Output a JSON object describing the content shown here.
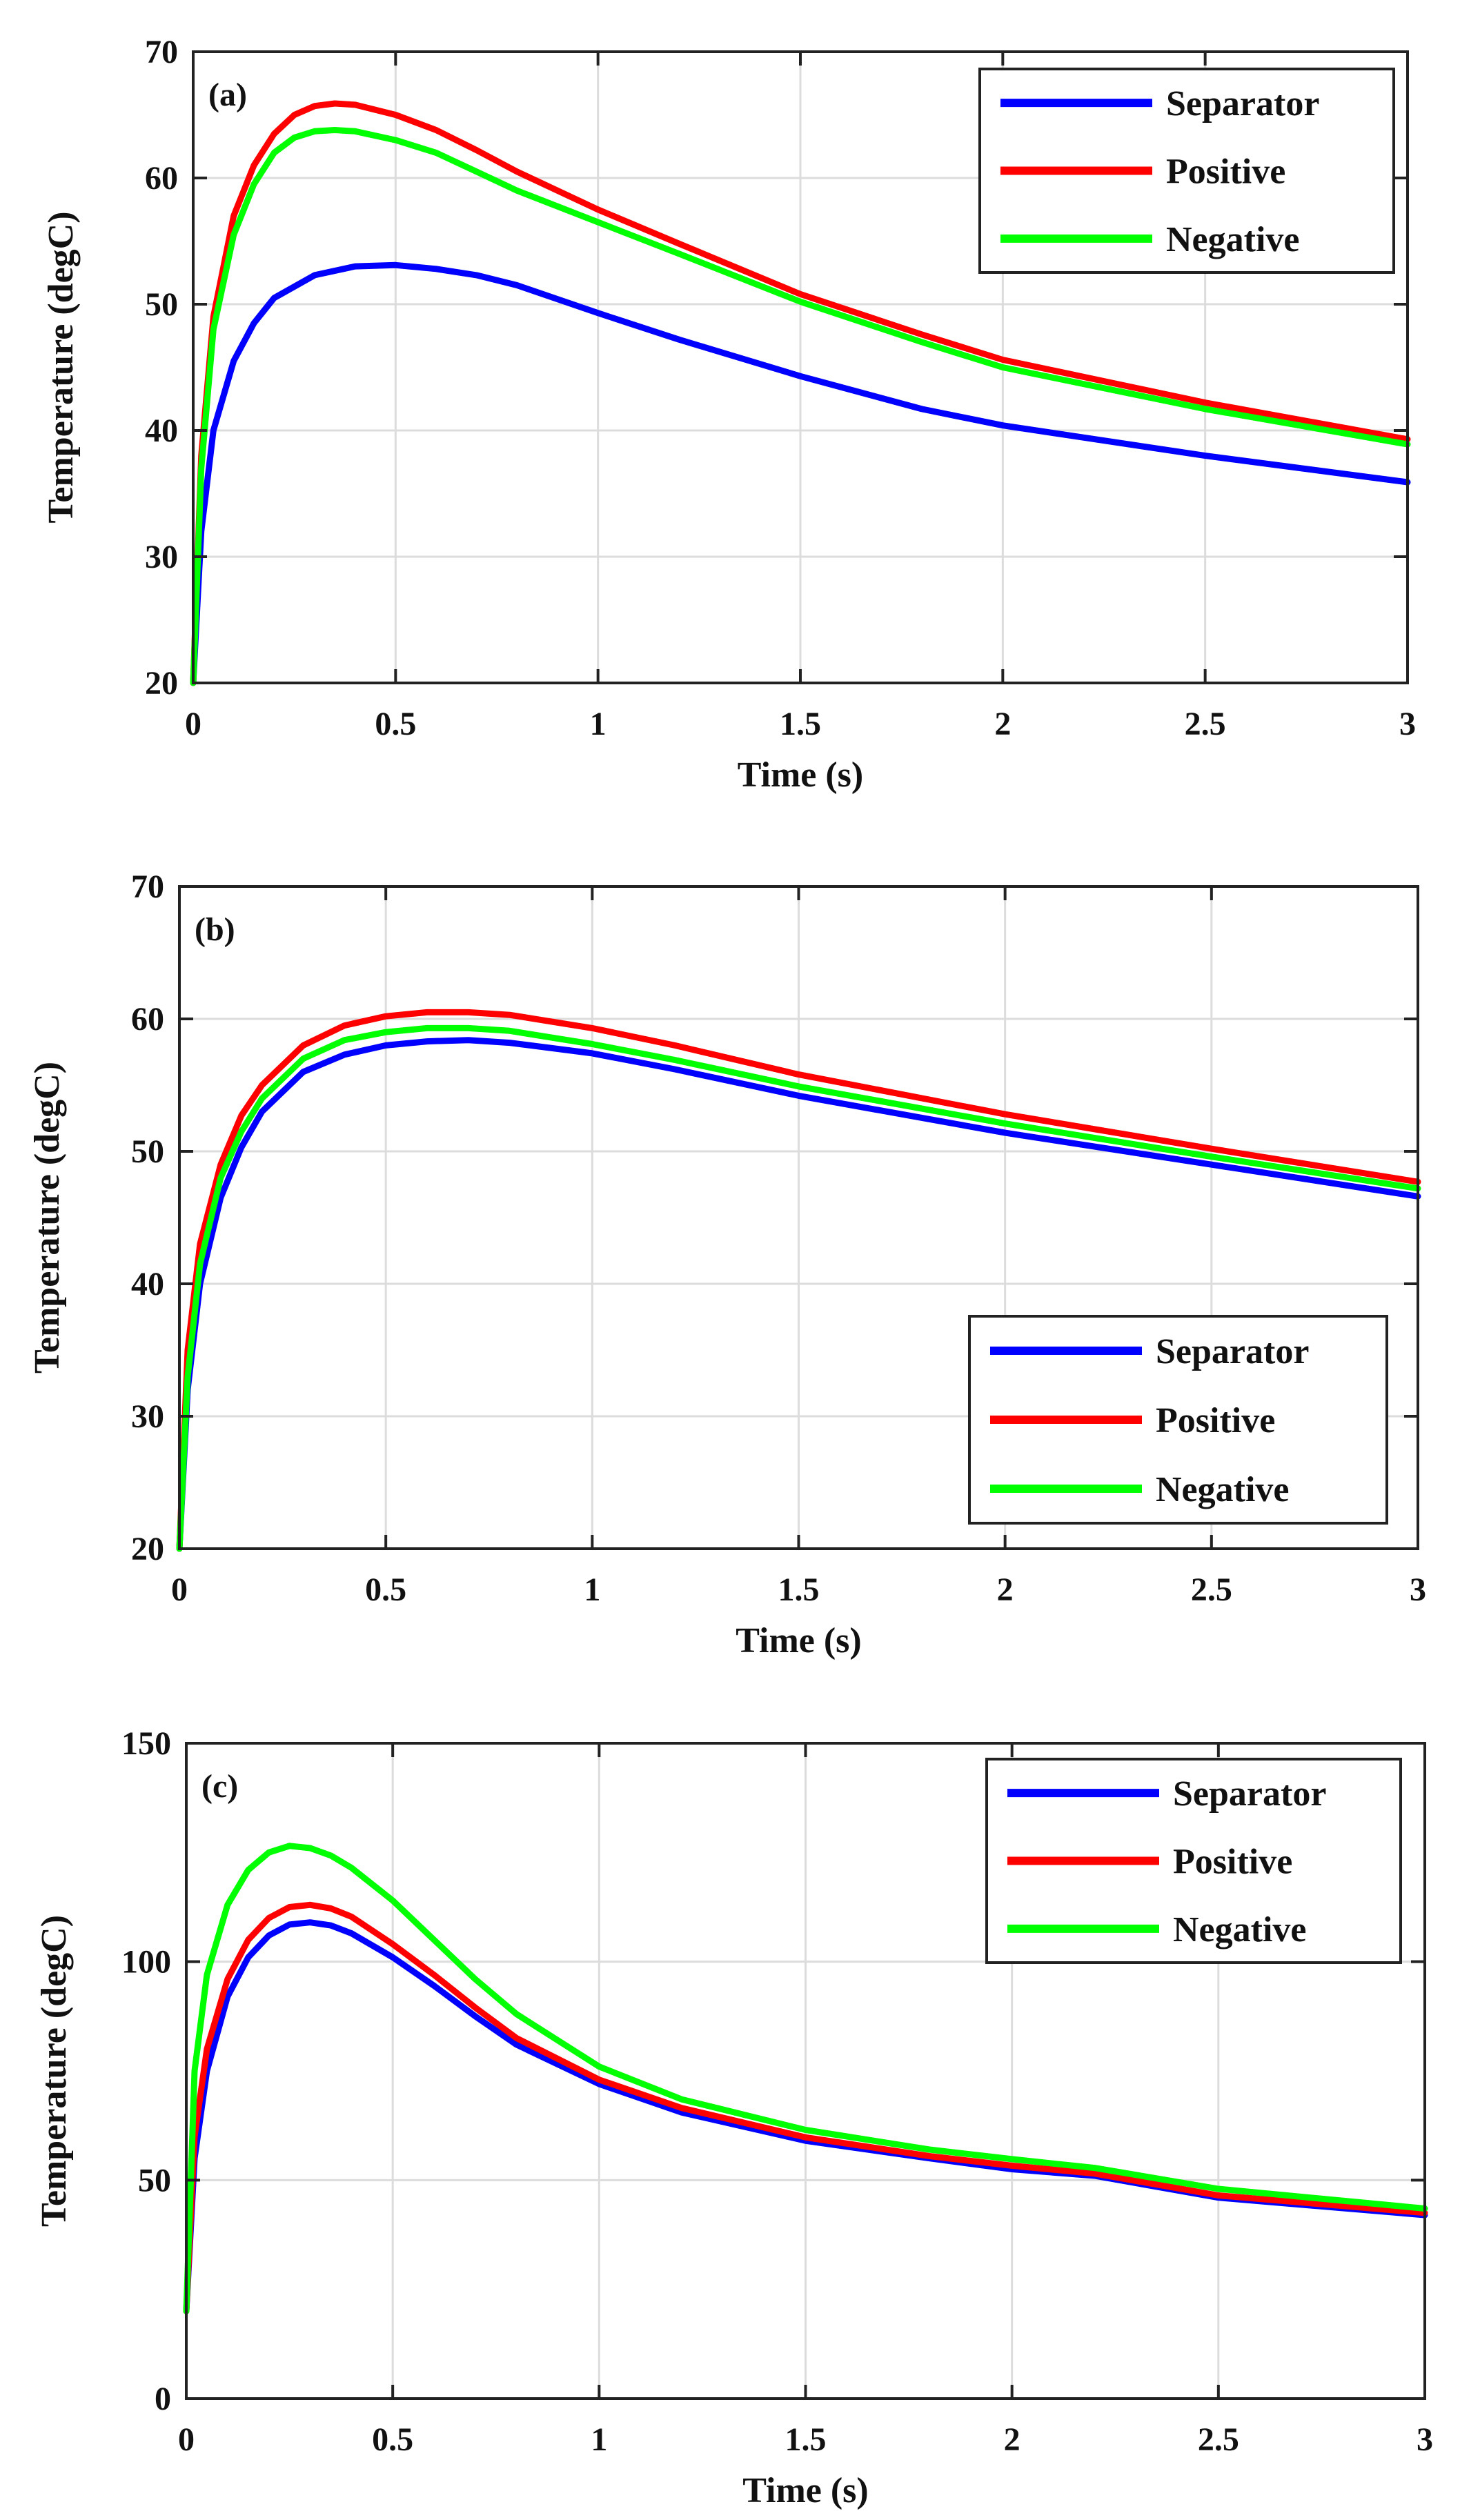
{
  "colors": {
    "separator": "#0000ff",
    "positive": "#ff0000",
    "negative": "#00ff00"
  },
  "chart_data": [
    {
      "type": "line",
      "panel_label": "(a)",
      "xlabel": "Time (s)",
      "ylabel": "Temperature (degC)",
      "xlim": [
        0,
        3
      ],
      "ylim": [
        20,
        70
      ],
      "xticks": [
        0,
        0.5,
        1,
        1.5,
        2,
        2.5,
        3
      ],
      "xtick_labels": [
        "0",
        "0.5",
        "1",
        "1.5",
        "2",
        "2.5",
        "3"
      ],
      "yticks": [
        20,
        30,
        40,
        50,
        60,
        70
      ],
      "ytick_labels": [
        "20",
        "30",
        "40",
        "50",
        "60",
        "70"
      ],
      "grid": true,
      "legend": "top-right",
      "series": [
        {
          "name": "Separator",
          "color": "#0000ff",
          "x": [
            0,
            0.02,
            0.05,
            0.1,
            0.15,
            0.2,
            0.3,
            0.4,
            0.5,
            0.6,
            0.7,
            0.8,
            1.0,
            1.2,
            1.5,
            1.8,
            2.0,
            2.5,
            3.0
          ],
          "y": [
            20,
            32,
            40,
            45.5,
            48.5,
            50.5,
            52.3,
            53.0,
            53.1,
            52.8,
            52.3,
            51.5,
            49.3,
            47.2,
            44.3,
            41.7,
            40.4,
            38.0,
            35.9
          ]
        },
        {
          "name": "Positive",
          "color": "#ff0000",
          "x": [
            0,
            0.02,
            0.05,
            0.1,
            0.15,
            0.2,
            0.25,
            0.3,
            0.35,
            0.4,
            0.5,
            0.6,
            0.7,
            0.8,
            1.0,
            1.2,
            1.5,
            1.8,
            2.0,
            2.5,
            3.0
          ],
          "y": [
            20,
            38,
            49,
            57,
            61,
            63.5,
            65,
            65.7,
            65.9,
            65.8,
            65.0,
            63.8,
            62.2,
            60.5,
            57.5,
            54.8,
            50.8,
            47.6,
            45.6,
            42.2,
            39.3
          ]
        },
        {
          "name": "Negative",
          "color": "#00ff00",
          "x": [
            0,
            0.02,
            0.05,
            0.1,
            0.15,
            0.2,
            0.25,
            0.3,
            0.35,
            0.4,
            0.5,
            0.6,
            0.7,
            0.8,
            1.0,
            1.2,
            1.5,
            1.8,
            2.0,
            2.5,
            3.0
          ],
          "y": [
            20,
            37,
            48,
            55.5,
            59.5,
            62,
            63.2,
            63.7,
            63.8,
            63.7,
            63.0,
            62.0,
            60.5,
            59.0,
            56.5,
            54.0,
            50.2,
            47.0,
            45.0,
            41.7,
            38.9
          ]
        }
      ]
    },
    {
      "type": "line",
      "panel_label": "(b)",
      "xlabel": "Time (s)",
      "ylabel": "Temperature (degC)",
      "xlim": [
        0,
        3
      ],
      "ylim": [
        20,
        70
      ],
      "xticks": [
        0,
        0.5,
        1,
        1.5,
        2,
        2.5,
        3
      ],
      "xtick_labels": [
        "0",
        "0.5",
        "1",
        "1.5",
        "2",
        "2.5",
        "3"
      ],
      "yticks": [
        20,
        30,
        40,
        50,
        60,
        70
      ],
      "ytick_labels": [
        "20",
        "30",
        "40",
        "50",
        "60",
        "70"
      ],
      "grid": true,
      "legend": "bottom-right",
      "series": [
        {
          "name": "Separator",
          "color": "#0000ff",
          "x": [
            0,
            0.02,
            0.05,
            0.1,
            0.15,
            0.2,
            0.3,
            0.4,
            0.5,
            0.6,
            0.7,
            0.8,
            1.0,
            1.2,
            1.5,
            2.0,
            2.5,
            3.0
          ],
          "y": [
            20,
            32,
            40,
            46.5,
            50.3,
            53,
            56,
            57.3,
            58.0,
            58.3,
            58.4,
            58.2,
            57.4,
            56.2,
            54.2,
            51.4,
            49.0,
            46.6
          ]
        },
        {
          "name": "Positive",
          "color": "#ff0000",
          "x": [
            0,
            0.02,
            0.05,
            0.1,
            0.15,
            0.2,
            0.3,
            0.4,
            0.5,
            0.6,
            0.7,
            0.8,
            1.0,
            1.2,
            1.5,
            2.0,
            2.5,
            3.0
          ],
          "y": [
            20,
            35,
            43,
            49,
            52.7,
            55,
            58,
            59.5,
            60.2,
            60.5,
            60.5,
            60.3,
            59.3,
            58.0,
            55.8,
            52.8,
            50.2,
            47.7
          ]
        },
        {
          "name": "Negative",
          "color": "#00ff00",
          "x": [
            0,
            0.02,
            0.05,
            0.1,
            0.15,
            0.2,
            0.3,
            0.4,
            0.5,
            0.6,
            0.7,
            0.8,
            1.0,
            1.2,
            1.5,
            2.0,
            2.5,
            3.0
          ],
          "y": [
            20,
            33,
            41.5,
            48,
            51.5,
            54,
            57,
            58.4,
            59.0,
            59.3,
            59.3,
            59.1,
            58.1,
            56.9,
            54.9,
            52.1,
            49.6,
            47.2
          ]
        }
      ]
    },
    {
      "type": "line",
      "panel_label": "(c)",
      "xlabel": "Time (s)",
      "ylabel": "Temperature (degC)",
      "xlim": [
        0,
        3
      ],
      "ylim": [
        0,
        150
      ],
      "xticks": [
        0,
        0.5,
        1,
        1.5,
        2,
        2.5,
        3
      ],
      "xtick_labels": [
        "0",
        "0.5",
        "1",
        "1.5",
        "2",
        "2.5",
        "3"
      ],
      "yticks": [
        0,
        50,
        100,
        150
      ],
      "ytick_labels": [
        "0",
        "50",
        "100",
        "150"
      ],
      "grid": true,
      "legend": "top-right",
      "series": [
        {
          "name": "Separator",
          "color": "#0000ff",
          "x": [
            0,
            0.02,
            0.05,
            0.1,
            0.15,
            0.2,
            0.25,
            0.3,
            0.35,
            0.4,
            0.5,
            0.6,
            0.7,
            0.8,
            1.0,
            1.2,
            1.5,
            1.8,
            2.0,
            2.2,
            2.5,
            3.0
          ],
          "y": [
            20,
            55,
            75,
            92,
            101,
            106,
            108.5,
            109,
            108.3,
            106.5,
            101,
            94.5,
            87.5,
            81,
            72,
            65.5,
            59,
            55,
            52.5,
            51,
            46,
            42
          ]
        },
        {
          "name": "Positive",
          "color": "#ff0000",
          "x": [
            0,
            0.02,
            0.05,
            0.1,
            0.15,
            0.2,
            0.25,
            0.3,
            0.35,
            0.4,
            0.5,
            0.6,
            0.7,
            0.8,
            1.0,
            1.2,
            1.5,
            1.8,
            2.0,
            2.2,
            2.5,
            3.0
          ],
          "y": [
            20,
            60,
            80,
            96,
            105,
            110,
            112.5,
            113,
            112.2,
            110.3,
            104,
            97,
            89.5,
            82.5,
            73,
            66.5,
            59.8,
            55.5,
            53.3,
            51.5,
            46.5,
            42.5
          ]
        },
        {
          "name": "Negative",
          "color": "#00ff00",
          "x": [
            0,
            0.02,
            0.05,
            0.1,
            0.15,
            0.2,
            0.25,
            0.3,
            0.35,
            0.4,
            0.5,
            0.6,
            0.7,
            0.8,
            1.0,
            1.2,
            1.5,
            1.8,
            2.0,
            2.2,
            2.5,
            3.0
          ],
          "y": [
            20,
            75,
            97,
            113,
            121,
            125,
            126.5,
            126,
            124.3,
            121.5,
            114,
            105,
            96,
            88,
            76,
            68.5,
            61.5,
            57,
            54.8,
            52.8,
            48,
            43.5
          ]
        }
      ]
    }
  ]
}
